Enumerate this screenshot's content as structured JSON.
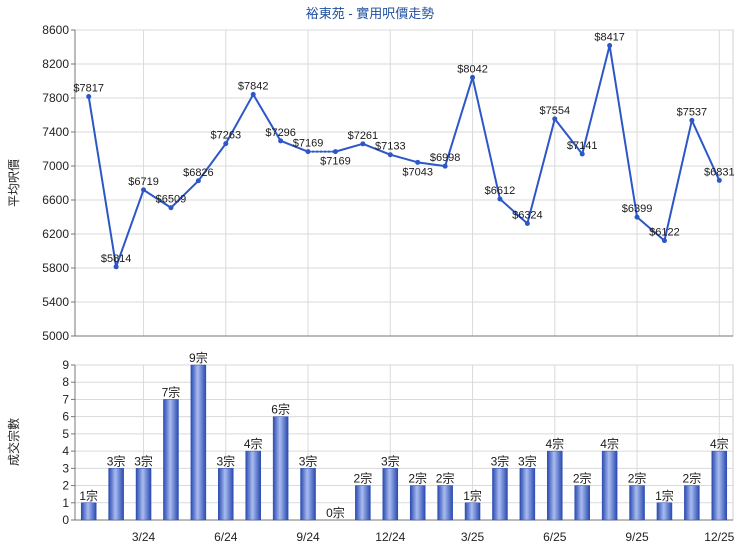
{
  "chart_data": [
    {
      "type": "line",
      "title": "裕東苑 - 實用呎價走勢",
      "ylabel": "平均呎價",
      "x": [
        "1/24",
        "2/24",
        "3/24",
        "4/24",
        "5/24",
        "6/24",
        "7/24",
        "8/24",
        "9/24",
        "10/24",
        "11/24",
        "12/24",
        "1/25",
        "2/25",
        "3/25",
        "4/25",
        "5/25",
        "6/25",
        "7/25",
        "8/25",
        "9/25",
        "10/25",
        "11/25",
        "12/25"
      ],
      "values": [
        7817,
        5814,
        6719,
        6509,
        6826,
        7263,
        7842,
        7296,
        7169,
        7169,
        7261,
        7133,
        7043,
        6998,
        8042,
        6612,
        6324,
        7554,
        7141,
        8417,
        6399,
        6122,
        7537,
        6831
      ],
      "label_prefix": "$",
      "ylim": [
        5000,
        8600
      ],
      "yticks": [
        5000,
        5400,
        5800,
        6200,
        6600,
        7000,
        7400,
        7800,
        8200,
        8600
      ],
      "grid": true,
      "line_color": "#2d57c8",
      "title_color": "#1f4f9f"
    },
    {
      "type": "bar",
      "ylabel": "成交宗數",
      "x": [
        "1/24",
        "2/24",
        "3/24",
        "4/24",
        "5/24",
        "6/24",
        "7/24",
        "8/24",
        "9/24",
        "10/24",
        "11/24",
        "12/24",
        "1/25",
        "2/25",
        "3/25",
        "4/25",
        "5/25",
        "6/25",
        "7/25",
        "8/25",
        "9/25",
        "10/25",
        "11/25",
        "12/25"
      ],
      "values": [
        1,
        3,
        3,
        7,
        9,
        3,
        4,
        6,
        3,
        0,
        2,
        3,
        2,
        2,
        1,
        3,
        3,
        4,
        2,
        4,
        2,
        1,
        2,
        4
      ],
      "label_suffix": "宗",
      "ylim": [
        0,
        9
      ],
      "yticks": [
        0,
        1,
        2,
        3,
        4,
        5,
        6,
        7,
        8,
        9
      ],
      "xticks": [
        "3/24",
        "6/24",
        "9/24",
        "12/24",
        "3/25",
        "6/25",
        "9/25",
        "12/25"
      ],
      "grid": true,
      "bar_color": "#2a4ab0",
      "bar_highlight_color": "#a9bcf0"
    }
  ]
}
